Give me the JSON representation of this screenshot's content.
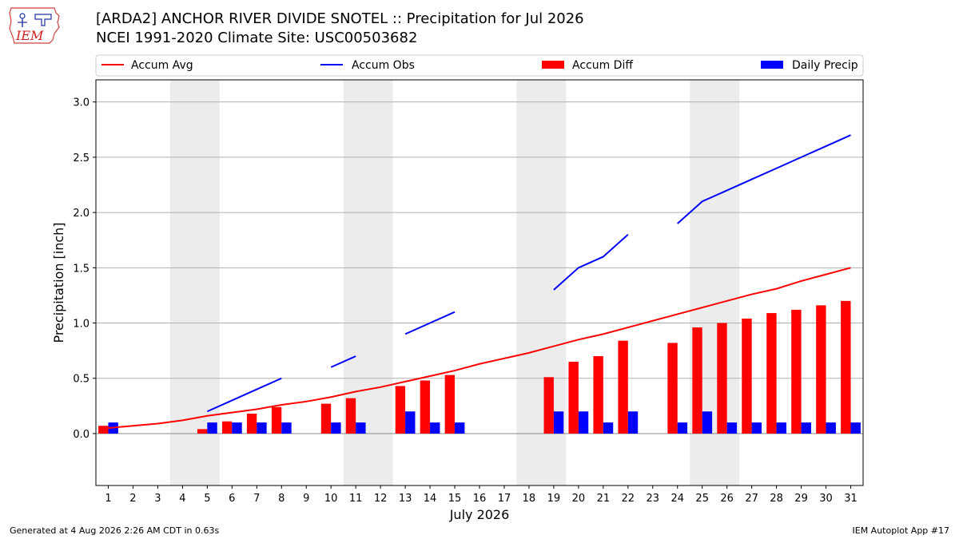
{
  "header": {
    "title_line1": "[ARDA2] ANCHOR RIVER DIVIDE SNOTEL :: Precipitation for Jul 2026",
    "title_line2": "NCEI 1991-2020 Climate Site: USC00503682",
    "logo_text": "IEM"
  },
  "footer": {
    "generated": "Generated at 4 Aug 2026 2:26 AM CDT in 0.63s",
    "app": "IEM Autoplot App #17"
  },
  "chart_data": {
    "type": "bar",
    "xlabel": "July 2026",
    "ylabel": "Precipitation [inch]",
    "ylim": [
      -0.47,
      3.2
    ],
    "yticks": [
      0.0,
      0.5,
      1.0,
      1.5,
      2.0,
      2.5,
      3.0
    ],
    "ytick_labels": [
      "0.0",
      "0.5",
      "1.0",
      "1.5",
      "2.0",
      "2.5",
      "3.0"
    ],
    "grid": "horizontal",
    "legend_placement": "top, above plot",
    "days": [
      1,
      2,
      3,
      4,
      5,
      6,
      7,
      8,
      9,
      10,
      11,
      12,
      13,
      14,
      15,
      16,
      17,
      18,
      19,
      20,
      21,
      22,
      23,
      24,
      25,
      26,
      27,
      28,
      29,
      30,
      31
    ],
    "weekend_shading": [
      [
        4,
        5
      ],
      [
        11,
        12
      ],
      [
        18,
        19
      ],
      [
        25,
        26
      ]
    ],
    "series": [
      {
        "name": "Accum Avg",
        "kind": "line",
        "color": "#ff0000",
        "values": [
          0.05,
          0.07,
          0.09,
          0.12,
          0.16,
          0.19,
          0.22,
          0.26,
          0.29,
          0.33,
          0.38,
          0.42,
          0.47,
          0.52,
          0.57,
          0.63,
          0.68,
          0.73,
          0.79,
          0.85,
          0.9,
          0.96,
          1.02,
          1.08,
          1.14,
          1.2,
          1.26,
          1.31,
          1.38,
          1.44,
          1.5
        ]
      },
      {
        "name": "Accum Obs",
        "kind": "line",
        "color": "#0000ff",
        "values": [
          null,
          null,
          null,
          null,
          0.2,
          0.3,
          0.4,
          0.5,
          null,
          0.6,
          0.7,
          null,
          0.9,
          1.0,
          1.1,
          null,
          null,
          null,
          1.3,
          1.5,
          1.6,
          1.8,
          null,
          1.9,
          2.1,
          2.2,
          2.3,
          2.4,
          2.5,
          2.6,
          2.7
        ]
      },
      {
        "name": "Accum Diff",
        "kind": "bar",
        "color": "#ff0000",
        "values": [
          0.07,
          0,
          0,
          0,
          0.04,
          0.11,
          0.18,
          0.24,
          0,
          0.27,
          0.32,
          0,
          0.43,
          0.48,
          0.53,
          0,
          0,
          0,
          0.51,
          0.65,
          0.7,
          0.84,
          0,
          0.82,
          0.96,
          1.0,
          1.04,
          1.09,
          1.12,
          1.16,
          1.2
        ]
      },
      {
        "name": "Daily Precip",
        "kind": "bar",
        "color": "#0000ff",
        "values": [
          0.1,
          0,
          0,
          0,
          0.1,
          0.1,
          0.1,
          0.1,
          0,
          0.1,
          0.1,
          0,
          0.2,
          0.1,
          0.1,
          0,
          0,
          0,
          0.2,
          0.2,
          0.1,
          0.2,
          0,
          0.1,
          0.2,
          0.1,
          0.1,
          0.1,
          0.1,
          0.1,
          0.1
        ]
      }
    ]
  }
}
